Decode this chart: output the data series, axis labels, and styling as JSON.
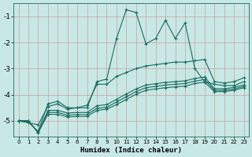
{
  "xlabel": "Humidex (Indice chaleur)",
  "xlim": [
    -0.5,
    23.5
  ],
  "ylim": [
    -5.6,
    -0.5
  ],
  "yticks": [
    -5,
    -4,
    -3,
    -2,
    -1
  ],
  "xticks": [
    0,
    1,
    2,
    3,
    4,
    5,
    6,
    7,
    8,
    9,
    10,
    11,
    12,
    13,
    14,
    15,
    16,
    17,
    18,
    19,
    20,
    21,
    22,
    23
  ],
  "bg_color": "#c8e8e5",
  "grid_color": "#c8a0a0",
  "line_color": "#1a6b5e",
  "lines": [
    {
      "x": [
        0,
        1,
        2,
        3,
        4,
        5,
        6,
        7,
        8,
        9,
        10,
        11,
        12,
        13,
        14,
        15,
        16,
        17,
        18,
        19,
        20,
        21,
        22,
        23
      ],
      "y": [
        -5.0,
        -5.05,
        -5.4,
        -4.35,
        -4.25,
        -4.5,
        -4.5,
        -4.5,
        -3.5,
        -3.4,
        -1.85,
        -0.75,
        -0.85,
        -2.05,
        -1.85,
        -1.15,
        -1.85,
        -1.25,
        -3.0,
        -3.5,
        -3.6,
        -3.65,
        -3.65,
        -3.5
      ]
    },
    {
      "x": [
        0,
        2,
        3,
        4,
        5,
        6,
        7,
        8,
        9,
        10,
        11,
        12,
        13,
        14,
        15,
        16,
        17,
        18,
        19,
        20,
        21,
        22,
        23
      ],
      "y": [
        -5.0,
        -5.15,
        -4.45,
        -4.35,
        -4.55,
        -4.5,
        -4.4,
        -3.6,
        -3.6,
        -3.3,
        -3.15,
        -3.0,
        -2.9,
        -2.85,
        -2.8,
        -2.75,
        -2.75,
        -2.7,
        -2.65,
        -3.5,
        -3.55,
        -3.5,
        -3.35
      ]
    },
    {
      "x": [
        0,
        1,
        2,
        3,
        4,
        5,
        6,
        7,
        8,
        9,
        10,
        11,
        12,
        13,
        14,
        15,
        16,
        17,
        18,
        19,
        20,
        21,
        22,
        23
      ],
      "y": [
        -5.0,
        -5.0,
        -5.45,
        -4.6,
        -4.6,
        -4.7,
        -4.68,
        -4.68,
        -4.42,
        -4.38,
        -4.18,
        -3.97,
        -3.78,
        -3.63,
        -3.58,
        -3.53,
        -3.5,
        -3.47,
        -3.38,
        -3.32,
        -3.77,
        -3.77,
        -3.72,
        -3.62
      ]
    },
    {
      "x": [
        0,
        1,
        2,
        3,
        4,
        5,
        6,
        7,
        8,
        9,
        10,
        11,
        12,
        13,
        14,
        15,
        16,
        17,
        18,
        19,
        20,
        21,
        22,
        23
      ],
      "y": [
        -5.0,
        -5.0,
        -5.45,
        -4.68,
        -4.68,
        -4.78,
        -4.76,
        -4.76,
        -4.52,
        -4.48,
        -4.28,
        -4.08,
        -3.88,
        -3.73,
        -3.68,
        -3.63,
        -3.6,
        -3.57,
        -3.48,
        -3.42,
        -3.83,
        -3.83,
        -3.78,
        -3.68
      ]
    },
    {
      "x": [
        0,
        1,
        2,
        3,
        4,
        5,
        6,
        7,
        8,
        9,
        10,
        11,
        12,
        13,
        14,
        15,
        16,
        17,
        18,
        19,
        20,
        21,
        22,
        23
      ],
      "y": [
        -5.0,
        -5.0,
        -5.45,
        -4.75,
        -4.75,
        -4.85,
        -4.83,
        -4.83,
        -4.6,
        -4.55,
        -4.38,
        -4.18,
        -3.98,
        -3.83,
        -3.78,
        -3.73,
        -3.7,
        -3.67,
        -3.57,
        -3.52,
        -3.88,
        -3.88,
        -3.83,
        -3.73
      ]
    }
  ]
}
